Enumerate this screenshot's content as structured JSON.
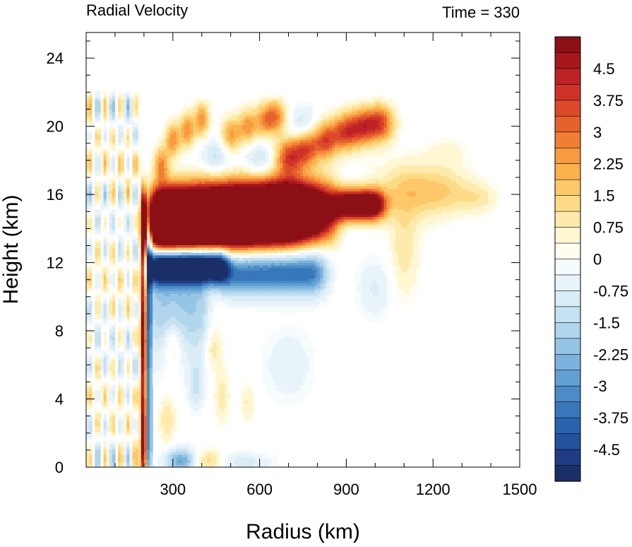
{
  "chart_data": {
    "type": "heatmap",
    "title_left": "Radial Velocity",
    "title_right": "Time = 330",
    "xlabel": "Radius (km)",
    "ylabel": "Height (km)",
    "xlim": [
      0,
      1500
    ],
    "ylim": [
      0,
      25.5
    ],
    "x_ticks": [
      "300",
      "600",
      "900",
      "1200",
      "1500"
    ],
    "y_ticks": [
      "0",
      "4",
      "8",
      "12",
      "16",
      "20",
      "24"
    ],
    "colorbar": {
      "range": [
        -5.25,
        5.25
      ],
      "step": 0.375,
      "tick_labels": [
        "4.5",
        "3.75",
        "3",
        "2.25",
        "1.5",
        "0.75",
        "0",
        "-0.75",
        "-1.5",
        "-2.25",
        "-3",
        "-3.75",
        "-4.5"
      ]
    },
    "features": [
      {
        "kind": "outflow-jet",
        "r": [
          230,
          1000
        ],
        "z": [
          12.8,
          16.3
        ],
        "value": 5.25
      },
      {
        "kind": "upper-outflow",
        "r": [
          660,
          1080
        ],
        "z": [
          17.0,
          20.5
        ],
        "value": 3.0
      },
      {
        "kind": "inflow-layer",
        "r": [
          230,
          800
        ],
        "z": [
          10.5,
          12.5
        ],
        "value": -3.5
      },
      {
        "kind": "eyewall-band",
        "r": [
          180,
          220
        ],
        "z": [
          0,
          16.5
        ],
        "value": 3.5
      },
      {
        "kind": "weak-anvil",
        "r": [
          1000,
          1420
        ],
        "z": [
          10.5,
          18.0
        ],
        "value": 1.0
      }
    ]
  },
  "colors": {
    "positive_max": "#8b1117",
    "neutral": "#ffffff",
    "negative_max": "#1b2f67"
  }
}
